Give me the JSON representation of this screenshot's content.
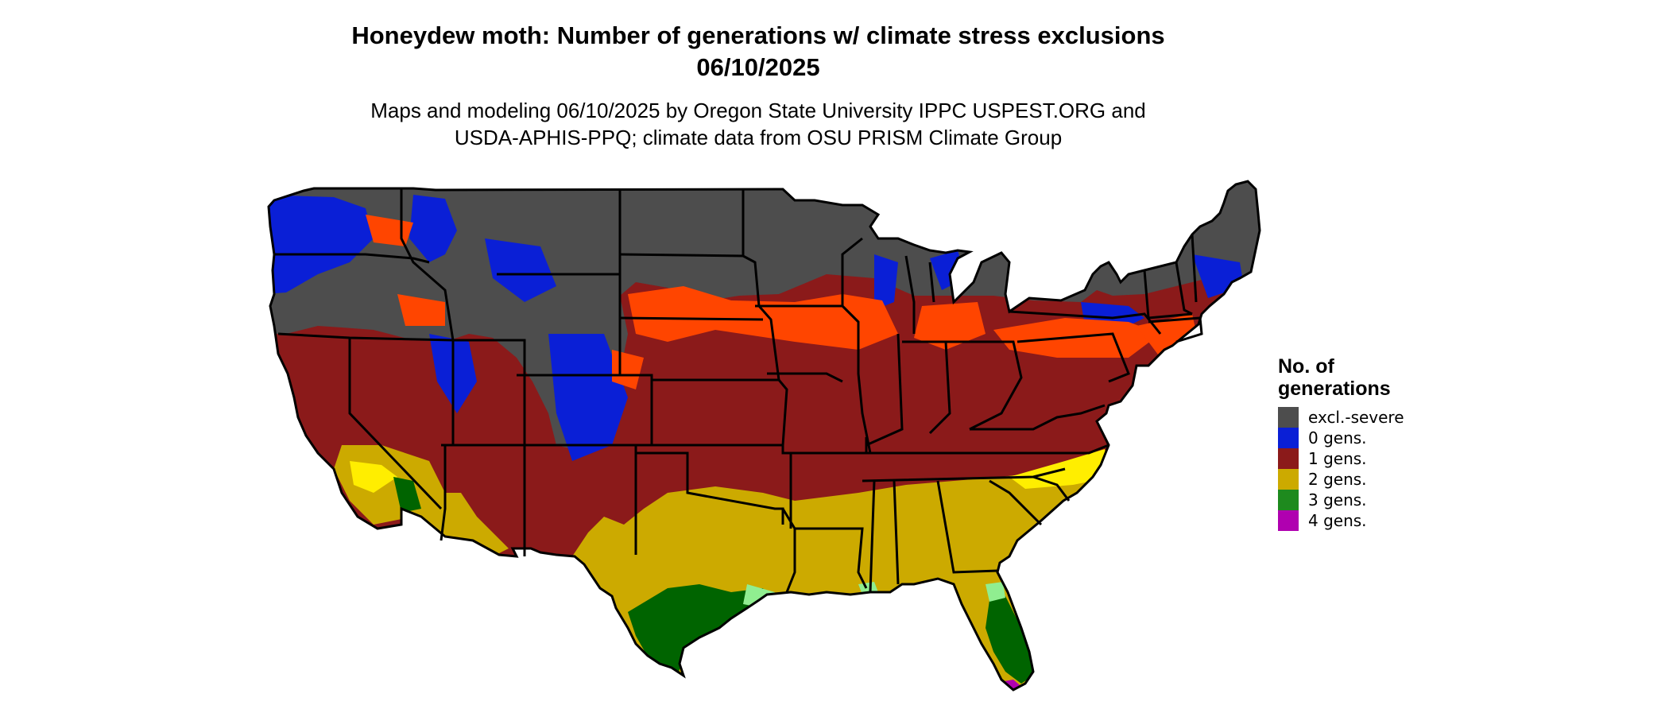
{
  "title_line1": "Honeydew moth: Number of generations w/ climate stress exclusions",
  "title_line2": "06/10/2025",
  "subtitle_line1": "Maps and modeling 06/10/2025 by Oregon State University IPPC USPEST.ORG and",
  "subtitle_line2": "USDA-APHIS-PPQ; climate data from OSU PRISM Climate Group",
  "legend": {
    "title_line1": "No. of",
    "title_line2": "generations",
    "items": [
      {
        "label": "excl.-severe",
        "color": "#4d4d4d"
      },
      {
        "label": "0 gens.",
        "color": "#0a1fd6"
      },
      {
        "label": "1 gens.",
        "color": "#8b1a1a"
      },
      {
        "label": "2 gens.",
        "color": "#ccaa00"
      },
      {
        "label": "3 gens.",
        "color": "#1e8a1e"
      },
      {
        "label": "4 gens.",
        "color": "#b000b0"
      }
    ]
  },
  "map_colors": {
    "excluded": "#4d4d4d",
    "zero": "#0a1fd6",
    "one": "#8b1a1a",
    "one_light": "#ff4500",
    "two": "#ccaa00",
    "two_light": "#ffee00",
    "three": "#006400",
    "three_light": "#90ee90",
    "four": "#b000b0",
    "border": "#000000"
  }
}
